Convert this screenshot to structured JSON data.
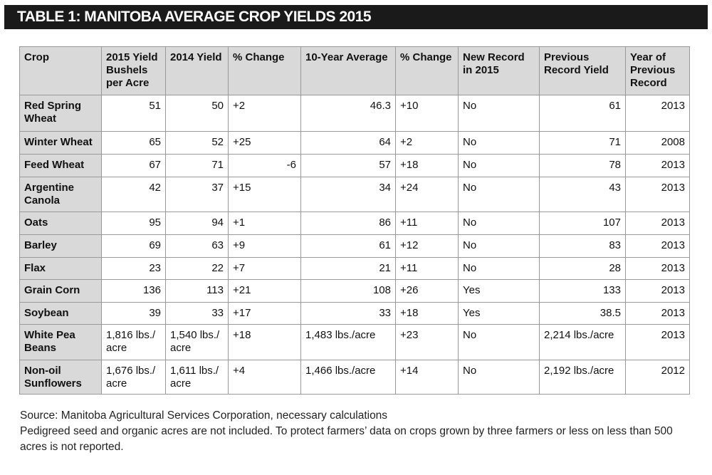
{
  "header": {
    "title": "TABLE 1: MANITOBA AVERAGE CROP YIELDS 2015"
  },
  "table": {
    "columns": [
      "Crop",
      "2015 Yield Bushels per Acre",
      "2014 Yield",
      "% Change",
      "10-Year Average",
      "% Change",
      "New Record in 2015",
      "Previous Record Yield",
      "Year of Previous Record"
    ],
    "rows": [
      [
        "Red Spring Wheat",
        "51",
        "50",
        "+2",
        "46.3",
        "+10",
        "No",
        "61",
        "2013"
      ],
      [
        "Winter Wheat",
        "65",
        "52",
        "+25",
        "64",
        "+2",
        "No",
        "71",
        "2008"
      ],
      [
        "Feed Wheat",
        "67",
        "71",
        "-6",
        "57",
        "+18",
        "No",
        "78",
        "2013"
      ],
      [
        "Argentine Canola",
        "42",
        "37",
        "+15",
        "34",
        "+24",
        "No",
        "43",
        "2013"
      ],
      [
        "Oats",
        "95",
        "94",
        "+1",
        "86",
        "+11",
        "No",
        "107",
        "2013"
      ],
      [
        "Barley",
        "69",
        "63",
        "+9",
        "61",
        "+12",
        "No",
        "83",
        "2013"
      ],
      [
        "Flax",
        "23",
        "22",
        "+7",
        "21",
        "+11",
        "No",
        "28",
        "2013"
      ],
      [
        "Grain Corn",
        "136",
        "113",
        "+21",
        "108",
        "+26",
        "Yes",
        "133",
        "2013"
      ],
      [
        "Soybean",
        "39",
        "33",
        "+17",
        "33",
        "+18",
        "Yes",
        "38.5",
        "2013"
      ],
      [
        "White Pea Beans",
        "1,816 lbs./ acre",
        "1,540 lbs./ acre",
        "+18",
        "1,483 lbs./acre",
        "+23",
        "No",
        "2,214 lbs./acre",
        "2013"
      ],
      [
        "Non-oil Sunflowers",
        "1,676 lbs./ acre",
        "1,611 lbs./ acre",
        "+4",
        "1,466 lbs./acre",
        "+14",
        "No",
        "2,192 lbs./acre",
        "2012"
      ]
    ]
  },
  "footer": {
    "source": "Source: Manitoba Agricultural Services Corporation, necessary calculations",
    "note": "Pedigreed seed and organic acres are not included. To protect farmers’ data on crops grown by three farmers or less on less than 500 acres is not reported."
  }
}
